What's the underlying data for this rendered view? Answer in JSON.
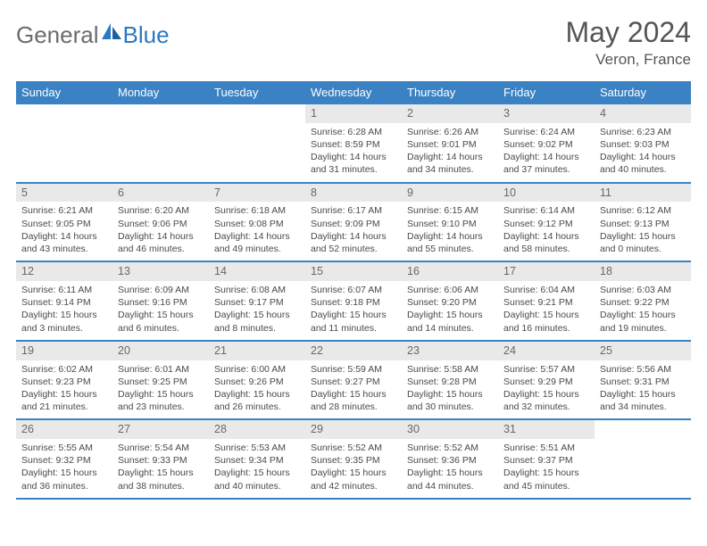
{
  "brand": {
    "part1": "General",
    "part2": "Blue"
  },
  "title": "May 2024",
  "location": "Veron, France",
  "colors": {
    "header_bg": "#3a82c4",
    "daynum_bg": "#e9e9e9",
    "text": "#4a4a4a",
    "brand_gray": "#6b6b6b",
    "brand_blue": "#2b78c2"
  },
  "weekdays": [
    "Sunday",
    "Monday",
    "Tuesday",
    "Wednesday",
    "Thursday",
    "Friday",
    "Saturday"
  ],
  "weeks": [
    [
      null,
      null,
      null,
      {
        "n": "1",
        "sr": "6:28 AM",
        "ss": "8:59 PM",
        "dl": "14 hours and 31 minutes."
      },
      {
        "n": "2",
        "sr": "6:26 AM",
        "ss": "9:01 PM",
        "dl": "14 hours and 34 minutes."
      },
      {
        "n": "3",
        "sr": "6:24 AM",
        "ss": "9:02 PM",
        "dl": "14 hours and 37 minutes."
      },
      {
        "n": "4",
        "sr": "6:23 AM",
        "ss": "9:03 PM",
        "dl": "14 hours and 40 minutes."
      }
    ],
    [
      {
        "n": "5",
        "sr": "6:21 AM",
        "ss": "9:05 PM",
        "dl": "14 hours and 43 minutes."
      },
      {
        "n": "6",
        "sr": "6:20 AM",
        "ss": "9:06 PM",
        "dl": "14 hours and 46 minutes."
      },
      {
        "n": "7",
        "sr": "6:18 AM",
        "ss": "9:08 PM",
        "dl": "14 hours and 49 minutes."
      },
      {
        "n": "8",
        "sr": "6:17 AM",
        "ss": "9:09 PM",
        "dl": "14 hours and 52 minutes."
      },
      {
        "n": "9",
        "sr": "6:15 AM",
        "ss": "9:10 PM",
        "dl": "14 hours and 55 minutes."
      },
      {
        "n": "10",
        "sr": "6:14 AM",
        "ss": "9:12 PM",
        "dl": "14 hours and 58 minutes."
      },
      {
        "n": "11",
        "sr": "6:12 AM",
        "ss": "9:13 PM",
        "dl": "15 hours and 0 minutes."
      }
    ],
    [
      {
        "n": "12",
        "sr": "6:11 AM",
        "ss": "9:14 PM",
        "dl": "15 hours and 3 minutes."
      },
      {
        "n": "13",
        "sr": "6:09 AM",
        "ss": "9:16 PM",
        "dl": "15 hours and 6 minutes."
      },
      {
        "n": "14",
        "sr": "6:08 AM",
        "ss": "9:17 PM",
        "dl": "15 hours and 8 minutes."
      },
      {
        "n": "15",
        "sr": "6:07 AM",
        "ss": "9:18 PM",
        "dl": "15 hours and 11 minutes."
      },
      {
        "n": "16",
        "sr": "6:06 AM",
        "ss": "9:20 PM",
        "dl": "15 hours and 14 minutes."
      },
      {
        "n": "17",
        "sr": "6:04 AM",
        "ss": "9:21 PM",
        "dl": "15 hours and 16 minutes."
      },
      {
        "n": "18",
        "sr": "6:03 AM",
        "ss": "9:22 PM",
        "dl": "15 hours and 19 minutes."
      }
    ],
    [
      {
        "n": "19",
        "sr": "6:02 AM",
        "ss": "9:23 PM",
        "dl": "15 hours and 21 minutes."
      },
      {
        "n": "20",
        "sr": "6:01 AM",
        "ss": "9:25 PM",
        "dl": "15 hours and 23 minutes."
      },
      {
        "n": "21",
        "sr": "6:00 AM",
        "ss": "9:26 PM",
        "dl": "15 hours and 26 minutes."
      },
      {
        "n": "22",
        "sr": "5:59 AM",
        "ss": "9:27 PM",
        "dl": "15 hours and 28 minutes."
      },
      {
        "n": "23",
        "sr": "5:58 AM",
        "ss": "9:28 PM",
        "dl": "15 hours and 30 minutes."
      },
      {
        "n": "24",
        "sr": "5:57 AM",
        "ss": "9:29 PM",
        "dl": "15 hours and 32 minutes."
      },
      {
        "n": "25",
        "sr": "5:56 AM",
        "ss": "9:31 PM",
        "dl": "15 hours and 34 minutes."
      }
    ],
    [
      {
        "n": "26",
        "sr": "5:55 AM",
        "ss": "9:32 PM",
        "dl": "15 hours and 36 minutes."
      },
      {
        "n": "27",
        "sr": "5:54 AM",
        "ss": "9:33 PM",
        "dl": "15 hours and 38 minutes."
      },
      {
        "n": "28",
        "sr": "5:53 AM",
        "ss": "9:34 PM",
        "dl": "15 hours and 40 minutes."
      },
      {
        "n": "29",
        "sr": "5:52 AM",
        "ss": "9:35 PM",
        "dl": "15 hours and 42 minutes."
      },
      {
        "n": "30",
        "sr": "5:52 AM",
        "ss": "9:36 PM",
        "dl": "15 hours and 44 minutes."
      },
      {
        "n": "31",
        "sr": "5:51 AM",
        "ss": "9:37 PM",
        "dl": "15 hours and 45 minutes."
      },
      null
    ]
  ],
  "labels": {
    "sunrise": "Sunrise:",
    "sunset": "Sunset:",
    "daylight": "Daylight:"
  }
}
